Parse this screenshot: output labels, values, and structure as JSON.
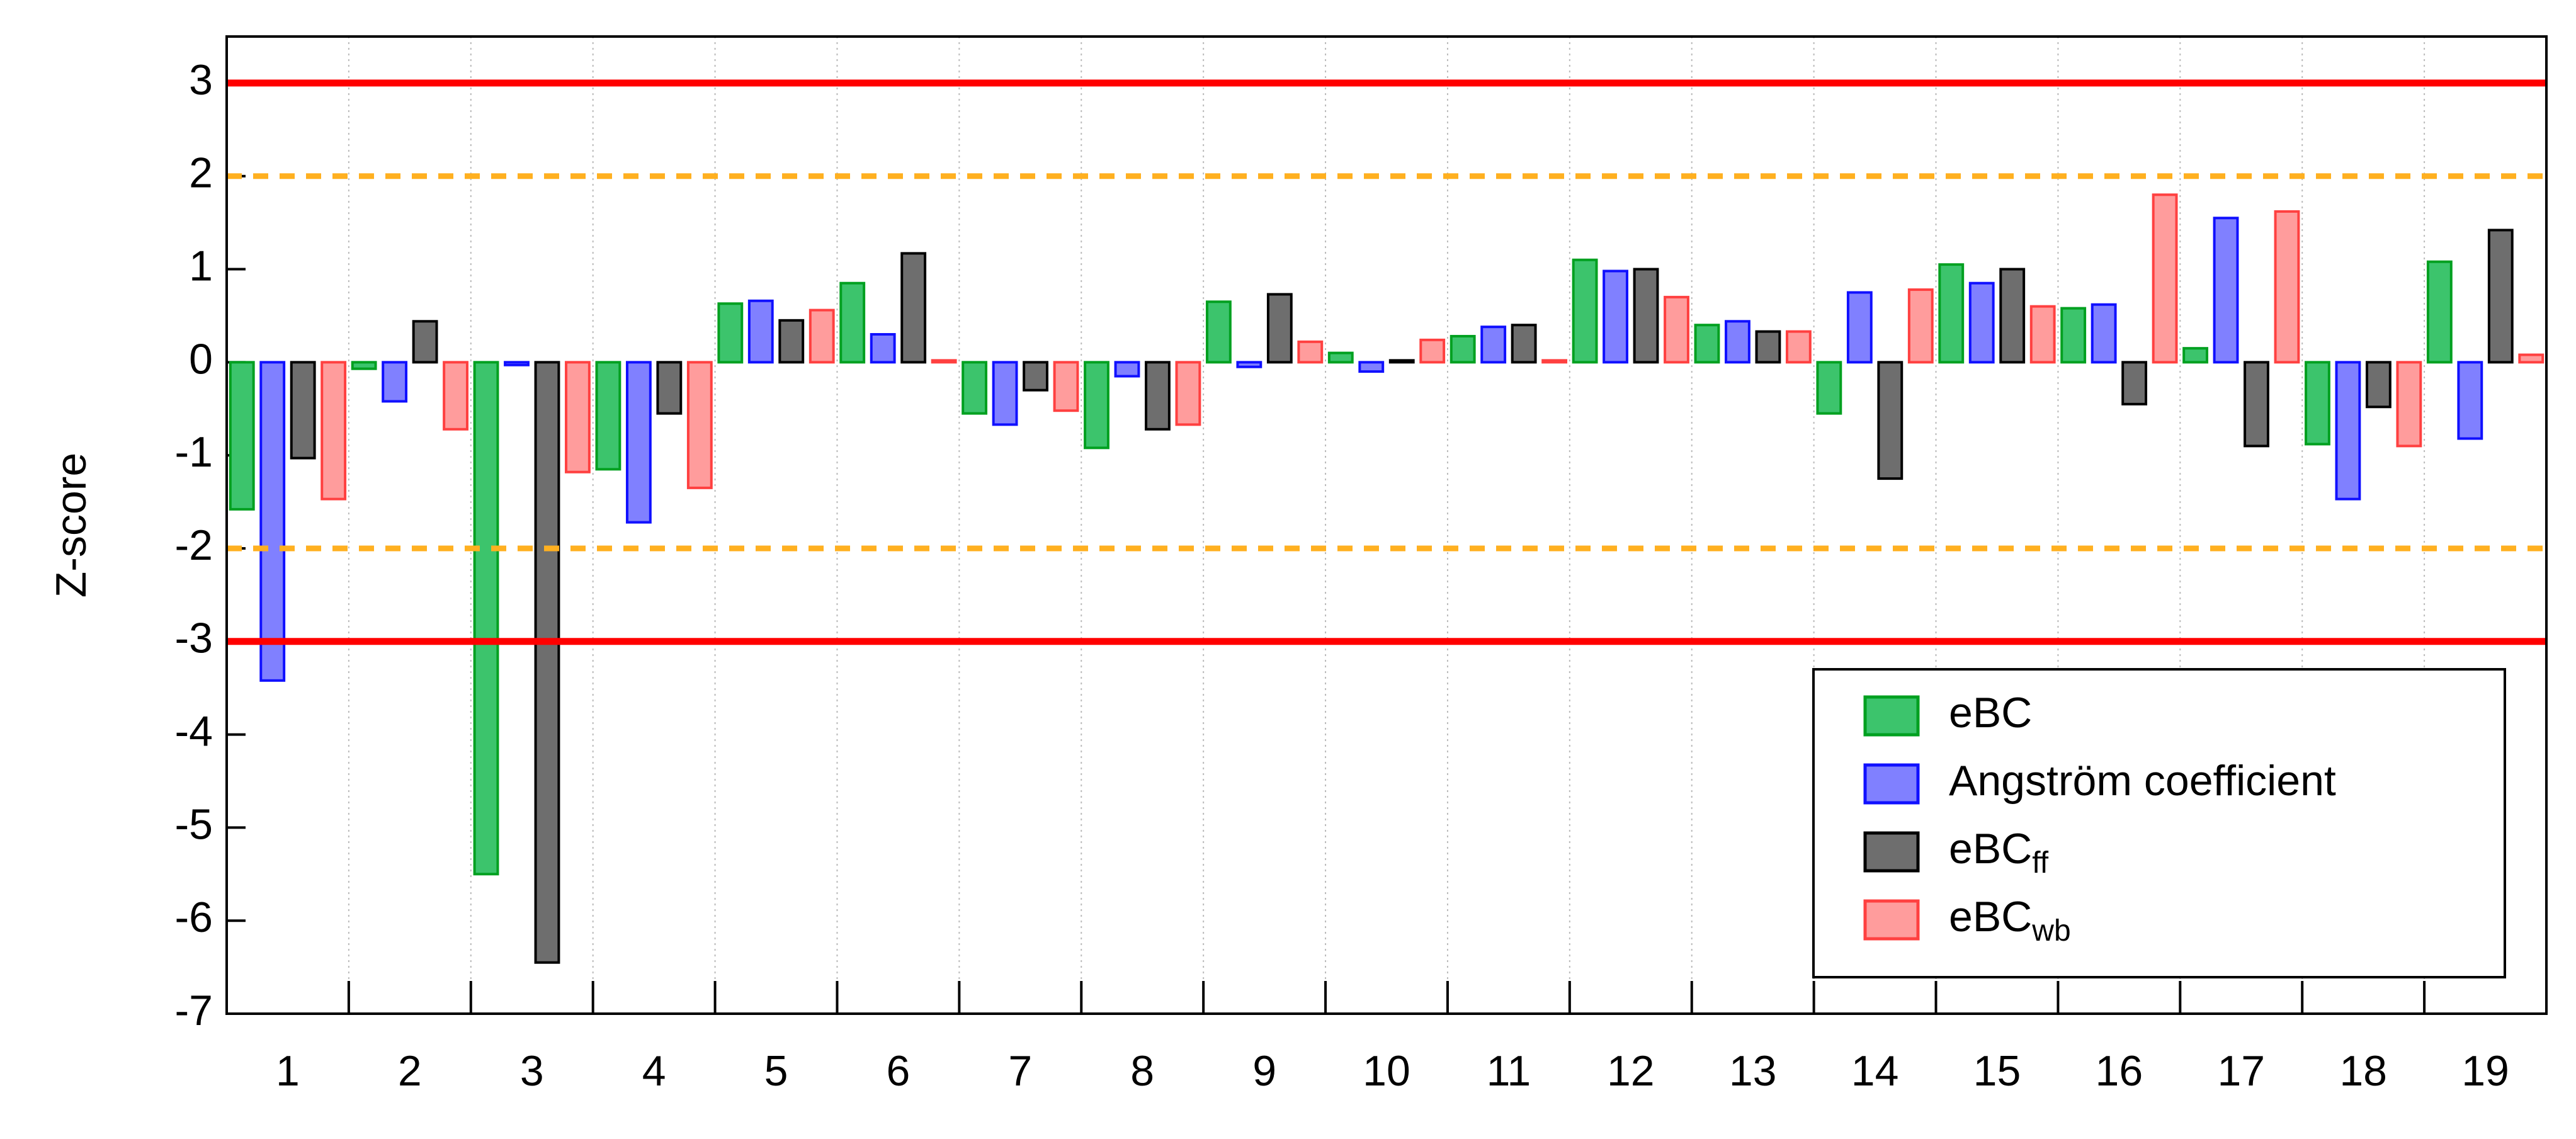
{
  "chart_data": {
    "type": "bar",
    "y_label": "Z-score",
    "categories": [
      "1",
      "2",
      "3",
      "4",
      "5",
      "6",
      "7",
      "8",
      "9",
      "10",
      "11",
      "12",
      "13",
      "14",
      "15",
      "16",
      "17",
      "18",
      "19"
    ],
    "series": [
      {
        "name": "eBC",
        "color": "#3cc46c",
        "edgecolor": "#00a020",
        "values": [
          -1.58,
          -0.07,
          -5.5,
          -1.15,
          0.63,
          0.85,
          -0.55,
          -0.92,
          0.65,
          0.1,
          0.28,
          1.1,
          0.4,
          -0.55,
          1.05,
          0.58,
          0.15,
          -0.88,
          1.08
        ]
      },
      {
        "name": "Angström coefficient",
        "color": "#8080ff",
        "edgecolor": "#1010ff",
        "values": [
          -3.42,
          -0.42,
          -0.03,
          -1.72,
          0.66,
          0.3,
          -0.67,
          -0.15,
          -0.05,
          -0.1,
          0.38,
          0.98,
          0.44,
          0.75,
          0.85,
          0.62,
          1.55,
          -1.47,
          -0.82
        ]
      },
      {
        "name": "eBC",
        "name_subscript": "ff",
        "color": "#6e6e6e",
        "edgecolor": "#000000",
        "values": [
          -1.03,
          0.44,
          -6.45,
          -0.55,
          0.45,
          1.17,
          -0.3,
          -0.72,
          0.73,
          0.02,
          0.4,
          1.0,
          0.33,
          -1.25,
          1.0,
          -0.45,
          -0.9,
          -0.48,
          1.42
        ]
      },
      {
        "name": "eBC",
        "name_subscript": "wb",
        "color": "#ff9c9c",
        "edgecolor": "#ff4040",
        "values": [
          -1.47,
          -0.72,
          -1.18,
          -1.35,
          0.56,
          0.02,
          -0.52,
          -0.67,
          0.22,
          0.24,
          0.02,
          0.7,
          0.33,
          0.78,
          0.6,
          1.8,
          1.62,
          -0.9,
          0.08
        ]
      }
    ],
    "ylim": [
      -7,
      3.5
    ],
    "yticks": [
      -7,
      -6,
      -5,
      -4,
      -3,
      -2,
      -1,
      0,
      1,
      2,
      3
    ],
    "grid": "x-dotted",
    "reference_lines": [
      {
        "value": 3,
        "color": "#ff0000",
        "style": "solid"
      },
      {
        "value": -3,
        "color": "#ff0000",
        "style": "solid"
      },
      {
        "value": 2,
        "color": "#ffb020",
        "style": "dashed"
      },
      {
        "value": -2,
        "color": "#ffb020",
        "style": "dashed"
      }
    ],
    "legend": "lower right"
  }
}
